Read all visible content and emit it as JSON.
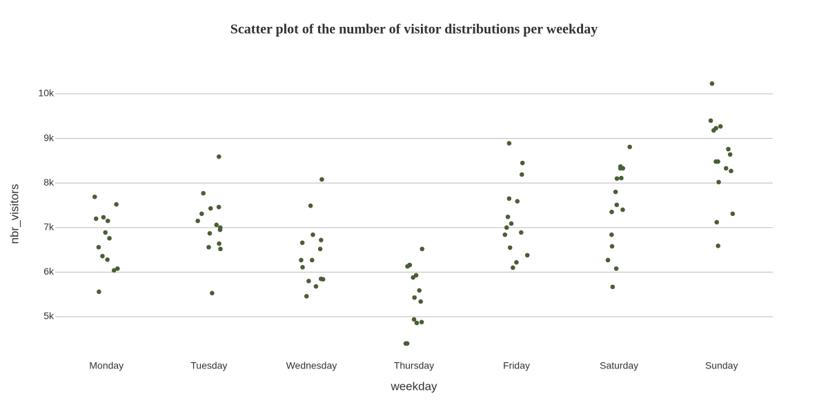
{
  "chart_data": {
    "type": "strip",
    "title": "Scatter plot of the number of visitor distributions per weekday",
    "x_label": "weekday",
    "y_label": "nbr_visitors",
    "categories": [
      "Monday",
      "Tuesday",
      "Wednesday",
      "Thursday",
      "Friday",
      "Saturday",
      "Sunday"
    ],
    "values": [
      [
        7690,
        7520,
        7200,
        7150,
        7230,
        6890,
        6760,
        6560,
        6360,
        6280,
        6080,
        6040,
        5560
      ],
      [
        8590,
        7770,
        7460,
        7430,
        7310,
        7150,
        7060,
        7000,
        6950,
        6870,
        6640,
        6560,
        6520,
        5530
      ],
      [
        8080,
        7490,
        6840,
        6720,
        6660,
        6520,
        6270,
        6270,
        6110,
        5840,
        5850,
        5800,
        5680,
        5460
      ],
      [
        6520,
        6130,
        6160,
        6160,
        5930,
        5880,
        5590,
        5430,
        5340,
        4940,
        4880,
        4860,
        4400,
        4400
      ],
      [
        8890,
        8450,
        8190,
        7650,
        7590,
        7240,
        7090,
        7000,
        6890,
        6840,
        6550,
        6380,
        6220,
        6100
      ],
      [
        8810,
        8370,
        8330,
        8330,
        8100,
        8110,
        7800,
        7510,
        7400,
        7350,
        6840,
        6580,
        6270,
        6080,
        5670
      ],
      [
        10230,
        9400,
        9270,
        9230,
        9180,
        8760,
        8640,
        8480,
        8480,
        8330,
        8270,
        8020,
        7310,
        7120,
        6590
      ]
    ],
    "color": "#4a5e35",
    "ylim": [
      4180,
      10480
    ],
    "yticks": [
      {
        "value": 5000,
        "label": "5k"
      },
      {
        "value": 6000,
        "label": "6k"
      },
      {
        "value": 7000,
        "label": "7k"
      },
      {
        "value": 8000,
        "label": "8k"
      },
      {
        "value": 9000,
        "label": "9k"
      },
      {
        "value": 10000,
        "label": "10k"
      }
    ],
    "grid": true
  }
}
